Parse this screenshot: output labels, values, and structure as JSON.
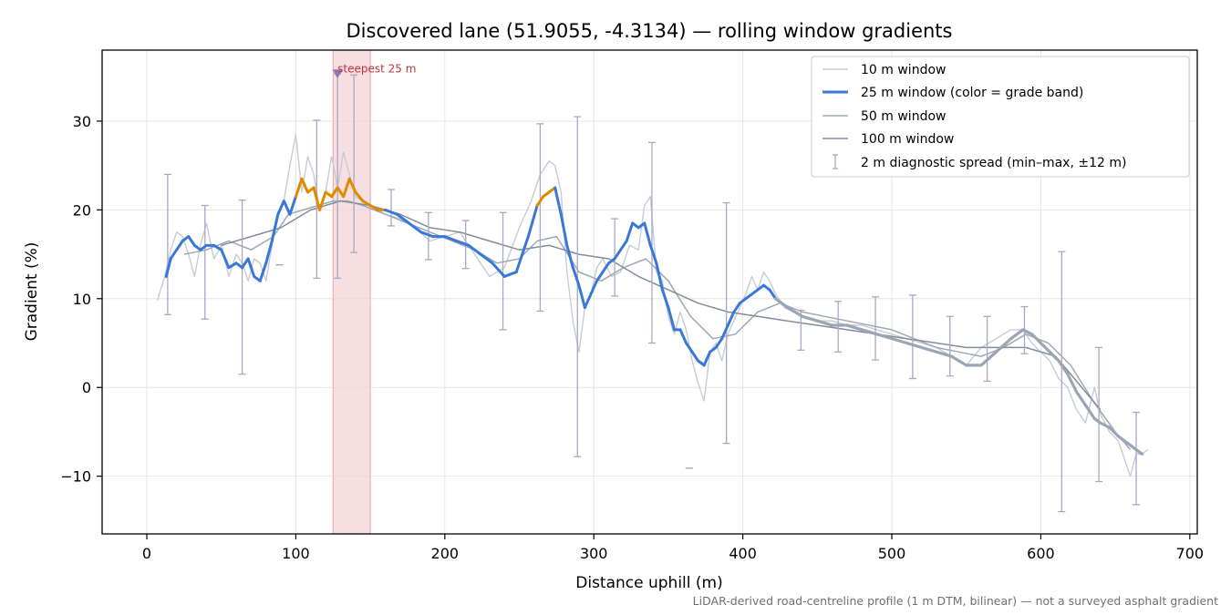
{
  "chart_data": {
    "type": "line",
    "title": "Discovered lane (51.9055, -4.3134) — rolling window gradients",
    "xlabel": "Distance uphill (m)",
    "ylabel": "Gradient (%)",
    "xlim": [
      -30,
      705
    ],
    "ylim": [
      -16.5,
      38
    ],
    "x_ticks": [
      0,
      100,
      200,
      300,
      400,
      500,
      600,
      700
    ],
    "y_ticks": [
      -10,
      0,
      10,
      20,
      30
    ],
    "y_tick_labels": [
      "−10",
      "0",
      "10",
      "20",
      "30"
    ],
    "grid": true,
    "legend_position": "top-right",
    "colors": {
      "w10": "#c6ccd6",
      "w25_normal": "#3a78d8",
      "w25_steep": "#e08a00",
      "w25_gray": "#9aa6b4",
      "w50": "#a0a8b4",
      "w100": "#848c98",
      "errorbar": "#a8a8c4",
      "highlight": "#f4d3d5",
      "annotation": "#c0333f",
      "marker": "#8c7cb0"
    },
    "grade_band_threshold": 20,
    "blue_range_end": 420,
    "series": [
      {
        "name": "10 m window",
        "key": "w10",
        "x": [
          7,
          12,
          16,
          20,
          24,
          28,
          32,
          36,
          40,
          45,
          50,
          55,
          60,
          64,
          68,
          72,
          76,
          80,
          84,
          88,
          92,
          96,
          100,
          104,
          108,
          112,
          116,
          120,
          124,
          128,
          132,
          136,
          140,
          145,
          150,
          160,
          170,
          180,
          190,
          200,
          210,
          220,
          230,
          240,
          250,
          258,
          264,
          270,
          274,
          278,
          282,
          286,
          290,
          294,
          298,
          302,
          306,
          312,
          318,
          324,
          330,
          334,
          338,
          342,
          346,
          350,
          354,
          358,
          362,
          366,
          370,
          374,
          378,
          382,
          386,
          390,
          394,
          398,
          402,
          406,
          410,
          414,
          418,
          422,
          428,
          440,
          450,
          460,
          470,
          480,
          490,
          500,
          510,
          520,
          530,
          540,
          550,
          560,
          570,
          580,
          588,
          594,
          600,
          606,
          612,
          618,
          624,
          630,
          636,
          640,
          646,
          652,
          656,
          660,
          664,
          668,
          672
        ],
        "y": [
          9.8,
          12.5,
          15.5,
          17.5,
          17.0,
          15.0,
          12.5,
          16.0,
          18.5,
          14.5,
          16.0,
          12.5,
          15.0,
          14.0,
          12.0,
          14.5,
          14.0,
          12.0,
          16.0,
          19.5,
          21.0,
          25.0,
          28.5,
          22.0,
          26.0,
          24.0,
          20.0,
          22.0,
          26.0,
          22.5,
          26.5,
          24.0,
          21.5,
          21.0,
          20.5,
          19.5,
          19.0,
          18.0,
          16.5,
          17.0,
          17.5,
          15.0,
          12.5,
          13.5,
          18.0,
          21.0,
          24.0,
          25.5,
          25.0,
          22.0,
          13.0,
          7.5,
          4.0,
          9.0,
          10.5,
          13.5,
          14.5,
          12.5,
          13.0,
          16.0,
          15.5,
          20.5,
          21.5,
          13.0,
          12.0,
          8.0,
          6.0,
          8.5,
          6.5,
          3.0,
          0.5,
          -1.5,
          4.0,
          5.0,
          3.0,
          6.0,
          7.5,
          9.0,
          10.5,
          12.5,
          11.0,
          13.0,
          12.0,
          10.5,
          9.0,
          8.0,
          7.5,
          7.5,
          7.0,
          7.0,
          6.5,
          6.0,
          5.5,
          5.0,
          4.5,
          3.5,
          2.5,
          4.5,
          5.5,
          6.5,
          6.5,
          5.0,
          4.0,
          3.0,
          1.0,
          0.0,
          -2.5,
          -4.0,
          0.0,
          -3.0,
          -5.0,
          -6.0,
          -8.0,
          -10.0,
          -7.5,
          -7.5,
          -7.0
        ]
      },
      {
        "name": "25 m window (color = grade band)",
        "key": "w25",
        "x": [
          13,
          16,
          20,
          24,
          28,
          32,
          36,
          40,
          45,
          50,
          55,
          60,
          64,
          68,
          72,
          76,
          80,
          84,
          88,
          92,
          96,
          100,
          104,
          108,
          112,
          116,
          120,
          124,
          128,
          132,
          136,
          140,
          145,
          150,
          155,
          160,
          168,
          176,
          184,
          192,
          200,
          208,
          216,
          224,
          232,
          240,
          248,
          256,
          262,
          266,
          270,
          274,
          278,
          282,
          286,
          290,
          294,
          298,
          302,
          306,
          310,
          314,
          318,
          322,
          326,
          330,
          334,
          338,
          342,
          346,
          350,
          354,
          358,
          362,
          366,
          370,
          374,
          378,
          382,
          386,
          390,
          394,
          398,
          402,
          406,
          410,
          414,
          418,
          422,
          430,
          440,
          450,
          460,
          470,
          480,
          490,
          500,
          510,
          520,
          530,
          540,
          550,
          560,
          570,
          580,
          588,
          594,
          600,
          606,
          612,
          618,
          624,
          630,
          636,
          640,
          646,
          652,
          656,
          660,
          664,
          668
        ],
        "y": [
          12.5,
          14.5,
          15.5,
          16.5,
          17.0,
          16.0,
          15.5,
          16.0,
          16.0,
          15.5,
          13.5,
          14.0,
          13.5,
          14.5,
          12.5,
          12.0,
          14.0,
          16.5,
          19.5,
          21.0,
          19.5,
          21.5,
          23.5,
          22.0,
          22.5,
          20.0,
          22.0,
          21.5,
          22.5,
          21.5,
          23.5,
          22.0,
          21.0,
          20.5,
          20.0,
          20.0,
          19.5,
          18.5,
          17.5,
          17.0,
          17.0,
          16.5,
          16.0,
          15.0,
          14.0,
          12.5,
          13.0,
          17.0,
          20.5,
          21.5,
          22.0,
          22.5,
          19.5,
          16.0,
          13.5,
          11.5,
          9.0,
          10.5,
          12.0,
          13.0,
          14.0,
          14.5,
          15.5,
          16.5,
          18.5,
          18.0,
          18.5,
          16.0,
          14.0,
          11.0,
          9.0,
          6.5,
          6.5,
          5.0,
          4.0,
          3.0,
          2.5,
          4.0,
          4.5,
          5.5,
          7.0,
          8.5,
          9.5,
          10.0,
          10.5,
          11.0,
          11.5,
          11.0,
          10.0,
          9.0,
          8.0,
          7.5,
          7.0,
          7.0,
          6.5,
          6.0,
          5.5,
          5.0,
          4.5,
          4.0,
          3.5,
          2.5,
          2.5,
          4.0,
          5.5,
          6.5,
          6.0,
          5.0,
          4.0,
          3.0,
          1.5,
          -0.5,
          -2.0,
          -3.5,
          -4.0,
          -4.5,
          -5.5,
          -6.0,
          -6.5,
          -7.0,
          -7.5
        ]
      },
      {
        "name": "50 m window",
        "key": "w50",
        "x": [
          25,
          40,
          55,
          70,
          85,
          95,
          105,
          115,
          125,
          135,
          145,
          160,
          175,
          190,
          205,
          220,
          235,
          250,
          262,
          275,
          290,
          305,
          320,
          335,
          350,
          365,
          380,
          395,
          410,
          425,
          440,
          455,
          470,
          485,
          500,
          515,
          530,
          545,
          560,
          575,
          590,
          605,
          620,
          635,
          650,
          660
        ],
        "y": [
          15.0,
          15.5,
          16.5,
          15.5,
          17.0,
          19.5,
          20.0,
          20.5,
          21.0,
          21.0,
          20.5,
          19.5,
          18.5,
          17.5,
          16.5,
          15.5,
          14.0,
          14.5,
          16.5,
          17.0,
          13.0,
          12.0,
          13.5,
          14.5,
          12.0,
          8.0,
          5.5,
          6.0,
          8.5,
          9.5,
          8.5,
          8.0,
          7.5,
          7.0,
          6.5,
          5.5,
          4.5,
          4.0,
          3.5,
          4.5,
          6.0,
          5.0,
          2.5,
          -1.5,
          -5.0,
          -7.0
        ]
      },
      {
        "name": "100 m window",
        "key": "w100",
        "x": [
          50,
          70,
          90,
          110,
          130,
          150,
          170,
          190,
          210,
          230,
          250,
          270,
          290,
          310,
          330,
          350,
          370,
          390,
          410,
          430,
          450,
          470,
          490,
          510,
          530,
          550,
          570,
          590,
          610,
          630,
          640
        ],
        "y": [
          16.0,
          17.0,
          18.0,
          20.0,
          21.0,
          20.5,
          19.5,
          18.0,
          17.5,
          16.5,
          15.5,
          16.0,
          15.0,
          14.5,
          12.5,
          11.0,
          9.5,
          8.5,
          8.0,
          7.5,
          7.0,
          6.5,
          6.0,
          5.5,
          5.0,
          4.5,
          4.5,
          4.5,
          3.5,
          -0.5,
          -2.5
        ]
      }
    ],
    "error_bars": {
      "name": "2 m diagnostic spread (min–max, ±12 m)",
      "x": [
        14,
        39,
        64,
        89,
        114,
        128,
        139,
        164,
        189,
        214,
        239,
        264,
        289,
        314,
        339,
        364,
        389,
        439,
        464,
        489,
        514,
        539,
        564,
        589,
        614,
        639,
        664
      ],
      "low": [
        8.2,
        7.7,
        1.5,
        13.8,
        12.3,
        12.3,
        15.2,
        18.2,
        14.4,
        13.4,
        6.5,
        8.6,
        -7.8,
        10.3,
        5.0,
        -9.1,
        -6.3,
        4.2,
        4.0,
        3.1,
        1.0,
        1.3,
        0.7,
        3.8,
        -14.0,
        -10.6,
        -13.2
      ],
      "high": [
        24.0,
        20.5,
        21.1,
        13.8,
        30.1,
        35.3,
        35.2,
        22.3,
        19.7,
        18.8,
        19.7,
        29.7,
        30.5,
        19.0,
        27.6,
        -9.1,
        20.8,
        8.7,
        9.7,
        10.2,
        10.4,
        8.0,
        8.0,
        9.1,
        15.3,
        4.5,
        -2.8
      ]
    },
    "highlight_span": [
      125,
      150
    ],
    "annotation": {
      "text": "steepest 25 m",
      "x": 128,
      "y": 35.3
    }
  },
  "footnote": "LiDAR-derived road-centreline profile (1 m DTM, bilinear) — not a surveyed asphalt gradient"
}
